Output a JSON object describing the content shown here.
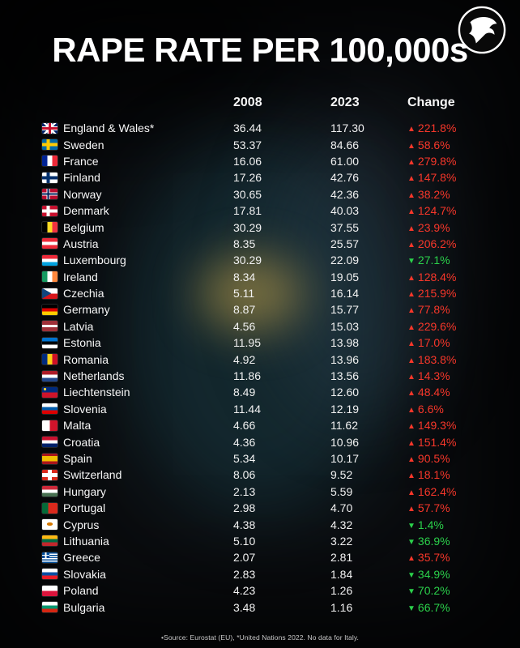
{
  "header": {
    "title": "RAPE RATE PER 100,000s"
  },
  "logo": {
    "name": "eagle-logo"
  },
  "columns": {
    "year_left": "2008",
    "year_right": "2023",
    "change": "Change"
  },
  "footer": {
    "source": "•Source: Eurostat (EU), *United Nations 2022. No data for Italy."
  },
  "colors": {
    "increase": "#f8372a",
    "decrease": "#2bd14b",
    "background": "#0b0d10",
    "text": "#f5f5f5"
  },
  "icons": {
    "up_arrow": "▲",
    "down_arrow": "▼"
  },
  "chart_data": {
    "type": "table",
    "title": "RAPE RATE PER 100,000s",
    "columns": [
      "Country",
      "2008",
      "2023",
      "Change"
    ],
    "rows": [
      {
        "country": "England & Wales*",
        "v2008": "36.44",
        "v2023": "117.30",
        "change": "221.8%",
        "dir": "up",
        "flag": {
          "t": "uk"
        }
      },
      {
        "country": "Sweden",
        "v2008": "53.37",
        "v2023": "84.66",
        "change": "58.6%",
        "dir": "up",
        "flag": {
          "t": "nordic",
          "bg": "#006AA7",
          "cross": "#FECC02"
        }
      },
      {
        "country": "France",
        "v2008": "16.06",
        "v2023": "61.00",
        "change": "279.8%",
        "dir": "up",
        "flag": {
          "t": "v",
          "c": [
            "#002395",
            "#FFFFFF",
            "#ED2939"
          ]
        }
      },
      {
        "country": "Finland",
        "v2008": "17.26",
        "v2023": "42.76",
        "change": "147.8%",
        "dir": "up",
        "flag": {
          "t": "nordic",
          "bg": "#FFFFFF",
          "cross": "#002F6C"
        }
      },
      {
        "country": "Norway",
        "v2008": "30.65",
        "v2023": "42.36",
        "change": "38.2%",
        "dir": "up",
        "flag": {
          "t": "nordic",
          "bg": "#BA0C2F",
          "cross": "#FFFFFF",
          "inner": "#00205B"
        }
      },
      {
        "country": "Denmark",
        "v2008": "17.81",
        "v2023": "40.03",
        "change": "124.7%",
        "dir": "up",
        "flag": {
          "t": "nordic",
          "bg": "#C8102E",
          "cross": "#FFFFFF"
        }
      },
      {
        "country": "Belgium",
        "v2008": "30.29",
        "v2023": "37.55",
        "change": "23.9%",
        "dir": "up",
        "flag": {
          "t": "v",
          "c": [
            "#000000",
            "#FDDA24",
            "#EF3340"
          ]
        }
      },
      {
        "country": "Austria",
        "v2008": "8.35",
        "v2023": "25.57",
        "change": "206.2%",
        "dir": "up",
        "flag": {
          "t": "h",
          "c": [
            "#ED2939",
            "#FFFFFF",
            "#ED2939"
          ]
        }
      },
      {
        "country": "Luxembourg",
        "v2008": "30.29",
        "v2023": "22.09",
        "change": "27.1%",
        "dir": "down",
        "flag": {
          "t": "h",
          "c": [
            "#ED2939",
            "#FFFFFF",
            "#00A1DE"
          ]
        }
      },
      {
        "country": "Ireland",
        "v2008": "8.34",
        "v2023": "19.05",
        "change": "128.4%",
        "dir": "up",
        "flag": {
          "t": "v",
          "c": [
            "#169B62",
            "#FFFFFF",
            "#FF883E"
          ]
        }
      },
      {
        "country": "Czechia",
        "v2008": "5.11",
        "v2023": "16.14",
        "change": "215.9%",
        "dir": "up",
        "flag": {
          "t": "h",
          "c": [
            "#FFFFFF",
            "#D7141A"
          ],
          "tri": "#11457E"
        }
      },
      {
        "country": "Germany",
        "v2008": "8.87",
        "v2023": "15.77",
        "change": "77.8%",
        "dir": "up",
        "flag": {
          "t": "h",
          "c": [
            "#000000",
            "#DD0000",
            "#FFCC00"
          ]
        }
      },
      {
        "country": "Latvia",
        "v2008": "4.56",
        "v2023": "15.03",
        "change": "229.6%",
        "dir": "up",
        "flag": {
          "t": "h",
          "c": [
            "#9E3039",
            "#FFFFFF",
            "#9E3039"
          ],
          "w": [
            2,
            1,
            2
          ]
        }
      },
      {
        "country": "Estonia",
        "v2008": "11.95",
        "v2023": "13.98",
        "change": "17.0%",
        "dir": "up",
        "flag": {
          "t": "h",
          "c": [
            "#0072CE",
            "#000000",
            "#FFFFFF"
          ]
        }
      },
      {
        "country": "Romania",
        "v2008": "4.92",
        "v2023": "13.96",
        "change": "183.8%",
        "dir": "up",
        "flag": {
          "t": "v",
          "c": [
            "#002B7F",
            "#FCD116",
            "#CE1126"
          ]
        }
      },
      {
        "country": "Netherlands",
        "v2008": "11.86",
        "v2023": "13.56",
        "change": "14.3%",
        "dir": "up",
        "flag": {
          "t": "h",
          "c": [
            "#AE1C28",
            "#FFFFFF",
            "#21468B"
          ]
        }
      },
      {
        "country": "Liechtenstein",
        "v2008": "8.49",
        "v2023": "12.60",
        "change": "48.4%",
        "dir": "up",
        "flag": {
          "t": "h",
          "c": [
            "#002B7F",
            "#CF142B"
          ],
          "crown": "#FFD83D"
        }
      },
      {
        "country": "Slovenia",
        "v2008": "11.44",
        "v2023": "12.19",
        "change": "6.6%",
        "dir": "up",
        "flag": {
          "t": "h",
          "c": [
            "#FFFFFF",
            "#005BAB",
            "#DD0000"
          ]
        }
      },
      {
        "country": "Malta",
        "v2008": "4.66",
        "v2023": "11.62",
        "change": "149.3%",
        "dir": "up",
        "flag": {
          "t": "v",
          "c": [
            "#FFFFFF",
            "#CF142B"
          ]
        }
      },
      {
        "country": "Croatia",
        "v2008": "4.36",
        "v2023": "10.96",
        "change": "151.4%",
        "dir": "up",
        "flag": {
          "t": "h",
          "c": [
            "#C8102E",
            "#FFFFFF",
            "#012169"
          ]
        }
      },
      {
        "country": "Spain",
        "v2008": "5.34",
        "v2023": "10.17",
        "change": "90.5%",
        "dir": "up",
        "flag": {
          "t": "h",
          "c": [
            "#AA151B",
            "#F1BF00",
            "#AA151B"
          ],
          "w": [
            1,
            2,
            1
          ]
        }
      },
      {
        "country": "Switzerland",
        "v2008": "8.06",
        "v2023": "9.52",
        "change": "18.1%",
        "dir": "up",
        "flag": {
          "t": "cross",
          "bg": "#DA291C",
          "cross": "#FFFFFF"
        }
      },
      {
        "country": "Hungary",
        "v2008": "2.13",
        "v2023": "5.59",
        "change": "162.4%",
        "dir": "up",
        "flag": {
          "t": "h",
          "c": [
            "#CE2939",
            "#FFFFFF",
            "#477050"
          ]
        }
      },
      {
        "country": "Portugal",
        "v2008": "2.98",
        "v2023": "4.70",
        "change": "57.7%",
        "dir": "up",
        "flag": {
          "t": "v",
          "c": [
            "#046A38",
            "#DA291C"
          ],
          "w": [
            2,
            3
          ]
        }
      },
      {
        "country": "Cyprus",
        "v2008": "4.38",
        "v2023": "4.32",
        "change": "1.4%",
        "dir": "down",
        "flag": {
          "t": "h",
          "c": [
            "#FFFFFF"
          ],
          "dot": "#D57800"
        }
      },
      {
        "country": "Lithuania",
        "v2008": "5.10",
        "v2023": "3.22",
        "change": "36.9%",
        "dir": "down",
        "flag": {
          "t": "h",
          "c": [
            "#FDB913",
            "#006A44",
            "#C1272D"
          ]
        }
      },
      {
        "country": "Greece",
        "v2008": "2.07",
        "v2023": "2.81",
        "change": "35.7%",
        "dir": "up",
        "flag": {
          "t": "h",
          "c": [
            "#004C98",
            "#FFFFFF",
            "#004C98",
            "#FFFFFF",
            "#004C98",
            "#FFFFFF",
            "#004C98",
            "#FFFFFF",
            "#004C98"
          ],
          "canton": "#004C98"
        }
      },
      {
        "country": "Slovakia",
        "v2008": "2.83",
        "v2023": "1.84",
        "change": "34.9%",
        "dir": "down",
        "flag": {
          "t": "h",
          "c": [
            "#FFFFFF",
            "#0B4EA2",
            "#EE1C25"
          ]
        }
      },
      {
        "country": "Poland",
        "v2008": "4.23",
        "v2023": "1.26",
        "change": "70.2%",
        "dir": "down",
        "flag": {
          "t": "h",
          "c": [
            "#FFFFFF",
            "#DC143C"
          ]
        }
      },
      {
        "country": "Bulgaria",
        "v2008": "3.48",
        "v2023": "1.16",
        "change": "66.7%",
        "dir": "down",
        "flag": {
          "t": "h",
          "c": [
            "#FFFFFF",
            "#00966E",
            "#D62612"
          ]
        }
      }
    ]
  }
}
